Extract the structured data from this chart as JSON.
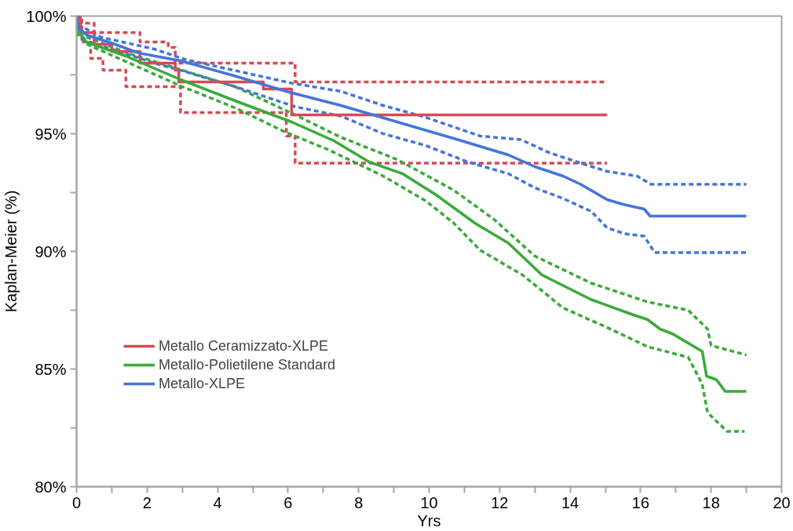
{
  "chart_data": {
    "type": "step",
    "xlabel": "Yrs",
    "ylabel": "Kaplan-Meier (%)",
    "xlim": [
      0,
      20
    ],
    "ylim": [
      80,
      100
    ],
    "xticks": [
      0,
      {
        "value": 1,
        "label": null
      },
      2,
      {
        "value": 3,
        "label": null
      },
      4,
      {
        "value": 5,
        "label": null
      },
      6,
      {
        "value": 7,
        "label": null
      },
      8,
      {
        "value": 9,
        "label": null
      },
      10,
      {
        "value": 11,
        "label": null
      },
      12,
      {
        "value": 13,
        "label": null
      },
      14,
      {
        "value": 15,
        "label": null
      },
      16,
      {
        "value": 17,
        "label": null
      },
      18,
      {
        "value": 19,
        "label": null
      },
      20
    ],
    "yticks": [
      {
        "value": 80,
        "label": "80%"
      },
      {
        "value": 82.5,
        "label": null
      },
      {
        "value": 85,
        "label": "85%"
      },
      {
        "value": 87.5,
        "label": null
      },
      {
        "value": 90,
        "label": "90%"
      },
      {
        "value": 92.5,
        "label": null
      },
      {
        "value": 95,
        "label": "95%"
      },
      {
        "value": 97.5,
        "label": null
      },
      {
        "value": 100,
        "label": "100%"
      }
    ],
    "grid": false,
    "legend": "left",
    "series": [
      {
        "name": "Metallo Ceramizzato-XLPE",
        "color": "#d64b55",
        "line_style": "solid",
        "x": [
          0,
          0.1,
          0.5,
          1,
          1.8,
          2.8,
          2.9,
          5.3,
          6.1,
          15.05
        ],
        "values": [
          100,
          99.3,
          98.8,
          98.5,
          98.0,
          97.7,
          97.2,
          96.9,
          95.8,
          95.8
        ]
      },
      {
        "name": "Metallo-Polietilene Standard",
        "type": "line",
        "color": "#3aaa3a",
        "line_style": "solid",
        "x": [
          0,
          0.05,
          0.28,
          1.4,
          2.95,
          4.5,
          6.1,
          7.3,
          8.3,
          9.25,
          10.2,
          11.3,
          12.25,
          13.2,
          14.6,
          15.8,
          16.2,
          16.55,
          16.9,
          17.75,
          17.87,
          18.15,
          18.4,
          19
        ],
        "values": [
          100,
          99.4,
          98.9,
          98.3,
          97.3,
          96.4,
          95.5,
          94.7,
          93.8,
          93.3,
          92.4,
          91.2,
          90.35,
          89.0,
          87.95,
          87.3,
          87.1,
          86.7,
          86.5,
          85.75,
          84.7,
          84.55,
          84.05,
          84.05
        ]
      },
      {
        "name": "Metallo-XLPE",
        "type": "line",
        "color": "#4574dc",
        "line_style": "solid",
        "x": [
          0,
          0.05,
          0.28,
          1.0,
          1.77,
          2.95,
          4.5,
          5.95,
          7.5,
          9.1,
          10.7,
          12.25,
          13.0,
          13.8,
          14.3,
          15.05,
          15.5,
          16.1,
          16.27,
          19
        ],
        "values": [
          100,
          99.5,
          99.2,
          98.85,
          98.43,
          98.1,
          97.45,
          96.8,
          96.2,
          95.5,
          94.8,
          94.1,
          93.6,
          93.2,
          92.85,
          92.2,
          92.0,
          91.8,
          91.5,
          91.5
        ]
      },
      {
        "color": "#d64b55",
        "line_style": "dashed",
        "x": [
          0,
          0.1,
          0.5,
          1.8,
          2.6,
          2.8,
          6.2,
          15.05
        ],
        "values": [
          100,
          99.7,
          99.3,
          98.9,
          98.67,
          98.0,
          97.2,
          97.2
        ]
      },
      {
        "color": "#d64b55",
        "line_style": "dashed",
        "x": [
          0,
          0.15,
          0.4,
          0.75,
          1.4,
          2.95,
          5.95,
          6.2,
          15.05
        ],
        "values": [
          100,
          98.9,
          98.2,
          97.7,
          97.0,
          95.9,
          94.9,
          93.75,
          93.75
        ]
      },
      {
        "type": "line",
        "color": "#3aaa3a",
        "line_style": "dashed",
        "x": [
          0,
          0.05,
          0.3,
          1.5,
          3,
          4.5,
          6.2,
          7.5,
          9.1,
          10.7,
          11.85,
          13.0,
          14.6,
          16.2,
          17.35,
          17.9,
          18.0,
          19
        ],
        "values": [
          100,
          99.6,
          99.1,
          98.4,
          97.7,
          97.0,
          95.8,
          94.85,
          93.9,
          92.6,
          91.35,
          89.8,
          88.65,
          87.85,
          87.5,
          86.7,
          86.0,
          85.6
        ]
      },
      {
        "type": "line",
        "color": "#3aaa3a",
        "line_style": "dashed",
        "x": [
          0,
          0.05,
          0.3,
          1.5,
          3,
          4.5,
          5.95,
          7.1,
          8.7,
          9.9,
          10.7,
          11.45,
          12.65,
          13.8,
          15.0,
          16.2,
          17.35,
          17.75,
          17.9,
          18.45,
          18.95
        ],
        "values": [
          100,
          99.2,
          98.8,
          98.0,
          97.0,
          96.1,
          95.05,
          94.35,
          93.2,
          92.15,
          91.2,
          90.05,
          89.0,
          87.6,
          86.8,
          85.95,
          85.5,
          84.35,
          83.15,
          82.35,
          82.35
        ]
      },
      {
        "type": "line",
        "color": "#4574dc",
        "line_style": "dashed",
        "x": [
          0,
          0.1,
          0.7,
          2.2,
          3.1,
          6.1,
          7.5,
          8.7,
          9.9,
          11.45,
          12.6,
          13.4,
          14.2,
          15.05,
          15.9,
          16.3,
          19
        ],
        "values": [
          100,
          99.6,
          99.1,
          98.6,
          98.15,
          97.15,
          96.8,
          96.2,
          95.7,
          94.9,
          94.75,
          94.2,
          93.8,
          93.4,
          93.2,
          92.85,
          92.85
        ]
      },
      {
        "type": "line",
        "color": "#4574dc",
        "line_style": "dashed",
        "x": [
          0,
          0.15,
          1.4,
          2.2,
          2.95,
          4.5,
          6.2,
          7.5,
          8.7,
          9.9,
          11.1,
          12.25,
          13.0,
          13.8,
          14.6,
          15.05,
          15.55,
          16.1,
          16.4,
          19
        ],
        "values": [
          100,
          99.0,
          98.4,
          98.0,
          97.7,
          97.0,
          96.15,
          95.75,
          95.0,
          94.5,
          93.8,
          93.3,
          92.7,
          92.25,
          91.7,
          91.0,
          90.75,
          90.65,
          89.95,
          89.95
        ]
      }
    ]
  }
}
